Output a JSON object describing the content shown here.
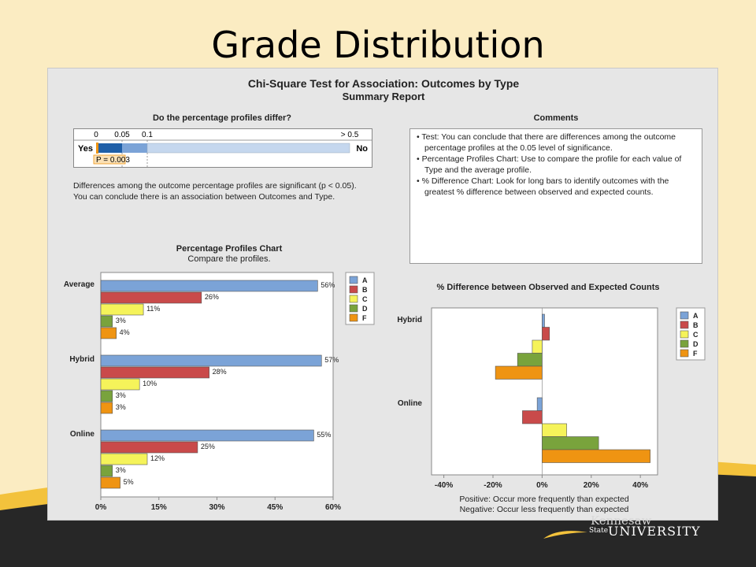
{
  "slide": {
    "title": "Grade Distribution",
    "logo_line1": "Kennesaw",
    "logo_state": "State",
    "logo_line2": "UNIVERSITY"
  },
  "report": {
    "title": "Chi-Square Test for Association: Outcomes by Type",
    "subtitle": "Summary Report"
  },
  "pvalue": {
    "title": "Do the percentage profiles differ?",
    "ticks": [
      "0",
      "0.05",
      "0.1",
      "> 0.5"
    ],
    "yes_label": "Yes",
    "no_label": "No",
    "p_label": "P = 0.003",
    "p_value": 0.003,
    "description": "Differences among the outcome percentage profiles are significant (p < 0.05). You can conclude there is an association between Outcomes and Type."
  },
  "comments": {
    "title": "Comments",
    "items": [
      "• Test: You can conclude that there are differences among the outcome percentage profiles at the 0.05 level of significance.",
      "• Percentage Profiles Chart: Use to compare the profile for each value of Type and the average profile.",
      "• % Difference Chart: Look for long bars to identify outcomes with the greatest % difference between observed and expected counts."
    ]
  },
  "diff_notes": {
    "positive": "Positive: Occur more frequently than expected",
    "negative": "Negative: Occur less frequently than expected"
  },
  "colors": {
    "A": "#7ba3d7",
    "B": "#c94a4a",
    "C": "#f5f35a",
    "D": "#79a33c",
    "F": "#ef9412"
  },
  "chart_data": [
    {
      "type": "bar",
      "orientation": "horizontal",
      "title": "Percentage Profiles Chart",
      "subtitle": "Compare the profiles.",
      "categories": [
        "Average",
        "Hybrid",
        "Online"
      ],
      "series": [
        {
          "name": "A",
          "values": [
            56,
            57,
            55
          ],
          "labels": [
            "56%",
            "57%",
            "55%"
          ]
        },
        {
          "name": "B",
          "values": [
            26,
            28,
            25
          ],
          "labels": [
            "26%",
            "28%",
            "25%"
          ]
        },
        {
          "name": "C",
          "values": [
            11,
            10,
            12
          ],
          "labels": [
            "11%",
            "10%",
            "12%"
          ]
        },
        {
          "name": "D",
          "values": [
            3,
            3,
            3
          ],
          "labels": [
            "3%",
            "3%",
            "3%"
          ]
        },
        {
          "name": "F",
          "values": [
            4,
            3,
            5
          ],
          "labels": [
            "4%",
            "3%",
            "5%"
          ]
        }
      ],
      "xlim": [
        0,
        60
      ],
      "xticks": [
        "0%",
        "15%",
        "30%",
        "45%",
        "60%"
      ],
      "legend": "right"
    },
    {
      "type": "bar",
      "orientation": "horizontal",
      "title": "% Difference between Observed and Expected Counts",
      "categories": [
        "Hybrid",
        "Online"
      ],
      "series": [
        {
          "name": "A",
          "values": [
            1,
            -2
          ]
        },
        {
          "name": "B",
          "values": [
            3,
            -8
          ]
        },
        {
          "name": "C",
          "values": [
            -4,
            10
          ]
        },
        {
          "name": "D",
          "values": [
            -10,
            23
          ]
        },
        {
          "name": "F",
          "values": [
            -19,
            44
          ]
        }
      ],
      "xlim": [
        -45,
        47
      ],
      "xticks": [
        -40,
        -20,
        0,
        20,
        40
      ],
      "xtick_labels": [
        "-40%",
        "-20%",
        "0%",
        "20%",
        "40%"
      ],
      "legend": "right"
    }
  ]
}
